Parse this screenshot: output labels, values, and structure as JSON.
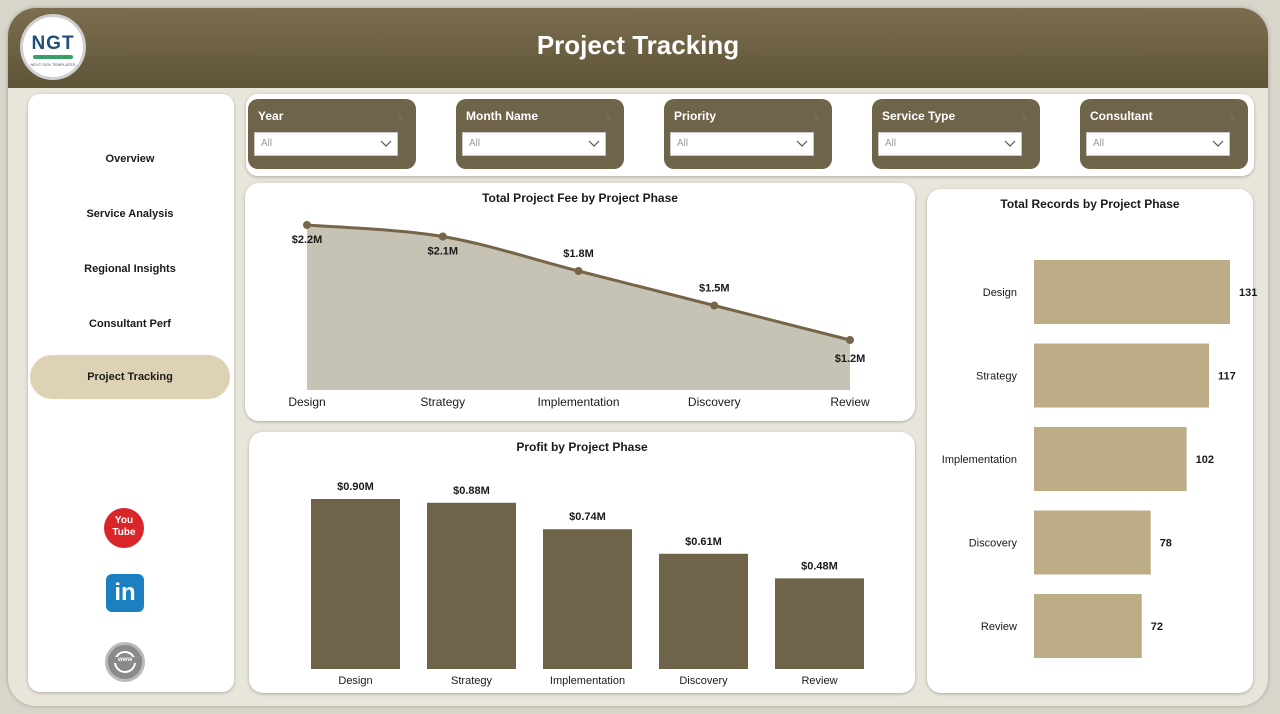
{
  "header": {
    "title": "Project Tracking"
  },
  "logo": {
    "text": "NGT",
    "subtext": "NEXT GEN TEMPLATES"
  },
  "sidebar": {
    "items": [
      {
        "label": "Overview",
        "active": false
      },
      {
        "label": "Service Analysis",
        "active": false
      },
      {
        "label": "Regional Insights",
        "active": false
      },
      {
        "label": "Consultant Perf",
        "active": false
      },
      {
        "label": "Project Tracking",
        "active": true
      }
    ],
    "social": {
      "youtube": {
        "icon": "youtube-icon",
        "text_top": "You",
        "text_bottom": "Tube"
      },
      "linkedin": {
        "icon": "linkedin-icon",
        "text": "in"
      },
      "website": {
        "icon": "globe-icon",
        "text": "www"
      }
    }
  },
  "filters": [
    {
      "label": "Year",
      "value": "All"
    },
    {
      "label": "Month Name",
      "value": "All"
    },
    {
      "label": "Priority",
      "value": "All"
    },
    {
      "label": "Service Type",
      "value": "All"
    },
    {
      "label": "Consultant",
      "value": "All"
    }
  ],
  "colors": {
    "accent": "#6f6349",
    "header": "#6b5e42",
    "area_fill": "#c6c2b4",
    "line": "#766548",
    "bar_dark": "#6f6349",
    "bar_light": "#bcad87",
    "nav_active": "#ddd3b4"
  },
  "chart_data": [
    {
      "type": "area",
      "title": "Total Project Fee by Project Phase",
      "categories": [
        "Design",
        "Strategy",
        "Implementation",
        "Discovery",
        "Review"
      ],
      "values": [
        2.2,
        2.1,
        1.8,
        1.5,
        1.2
      ],
      "data_labels": [
        "$2.2M",
        "$2.1M",
        "$1.8M",
        "$1.5M",
        "$1.2M"
      ],
      "ylim": [
        1.0,
        2.3
      ]
    },
    {
      "type": "bar",
      "title": "Profit by Project Phase",
      "categories": [
        "Design",
        "Strategy",
        "Implementation",
        "Discovery",
        "Review"
      ],
      "values": [
        0.9,
        0.88,
        0.74,
        0.61,
        0.48
      ],
      "data_labels": [
        "$0.90M",
        "$0.88M",
        "$0.74M",
        "$0.61M",
        "$0.48M"
      ],
      "ylim": [
        0,
        0.9
      ]
    },
    {
      "type": "bar",
      "orientation": "horizontal",
      "title": "Total Records by Project Phase",
      "categories": [
        "Design",
        "Strategy",
        "Implementation",
        "Discovery",
        "Review"
      ],
      "values": [
        131,
        117,
        102,
        78,
        72
      ],
      "data_labels": [
        "131",
        "117",
        "102",
        "78",
        "72"
      ],
      "xlim": [
        0,
        131
      ]
    }
  ]
}
